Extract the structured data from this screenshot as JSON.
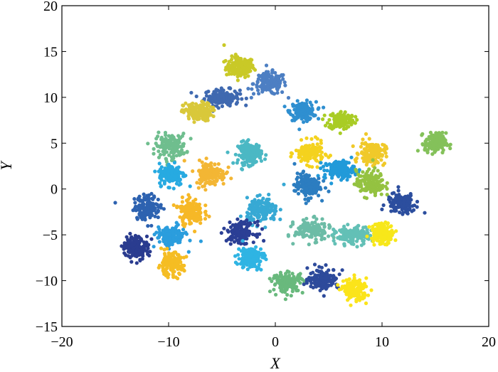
{
  "chart_data": {
    "type": "scatter",
    "xlabel": "X",
    "ylabel": "Y",
    "xlim": [
      -20,
      20
    ],
    "ylim": [
      -15,
      20
    ],
    "xticks": [
      -20,
      -10,
      0,
      10,
      20
    ],
    "yticks": [
      -15,
      -10,
      -5,
      0,
      5,
      10,
      15,
      20
    ],
    "xtick_labels": [
      "−20",
      "−10",
      "0",
      "10",
      "20"
    ],
    "ytick_labels": [
      "−15",
      "−10",
      "−5",
      "0",
      "5",
      "10",
      "15",
      "20"
    ],
    "grid": false,
    "legend": "none",
    "clusters": [
      {
        "center": [
          -3.3,
          13.3
        ],
        "spread": [
          1.2,
          1.0
        ],
        "color": "#c9c927"
      },
      {
        "center": [
          -5.0,
          10.0
        ],
        "spread": [
          1.5,
          0.8
        ],
        "color": "#3f69b0"
      },
      {
        "center": [
          -0.5,
          11.5
        ],
        "spread": [
          1.4,
          1.1
        ],
        "color": "#4d7fc3"
      },
      {
        "center": [
          2.6,
          8.5
        ],
        "spread": [
          1.1,
          0.9
        ],
        "color": "#2f8fd0"
      },
      {
        "center": [
          6.2,
          7.5
        ],
        "spread": [
          1.1,
          0.9
        ],
        "color": "#a9cc25"
      },
      {
        "center": [
          -7.3,
          8.4
        ],
        "spread": [
          1.2,
          0.9
        ],
        "color": "#d9c83a"
      },
      {
        "center": [
          -9.8,
          4.7
        ],
        "spread": [
          1.3,
          1.2
        ],
        "color": "#6fbe8e"
      },
      {
        "center": [
          -2.4,
          3.9
        ],
        "spread": [
          1.0,
          1.1
        ],
        "color": "#4bb8c4"
      },
      {
        "center": [
          3.2,
          3.9
        ],
        "spread": [
          1.2,
          1.1
        ],
        "color": "#f4d21e"
      },
      {
        "center": [
          9.1,
          3.9
        ],
        "spread": [
          1.1,
          1.1
        ],
        "color": "#f0c92a"
      },
      {
        "center": [
          15.0,
          5.0
        ],
        "spread": [
          0.9,
          1.0
        ],
        "color": "#84c15a"
      },
      {
        "center": [
          -9.7,
          1.6
        ],
        "spread": [
          1.1,
          1.1
        ],
        "color": "#27aae1"
      },
      {
        "center": [
          -6.1,
          1.7
        ],
        "spread": [
          1.3,
          1.2
        ],
        "color": "#f3b634"
      },
      {
        "center": [
          6.0,
          2.1
        ],
        "spread": [
          1.3,
          0.9
        ],
        "color": "#219ad9"
      },
      {
        "center": [
          3.0,
          0.4
        ],
        "spread": [
          1.1,
          1.2
        ],
        "color": "#2c7dc0"
      },
      {
        "center": [
          8.9,
          0.6
        ],
        "spread": [
          1.2,
          1.3
        ],
        "color": "#94c241"
      },
      {
        "center": [
          -12.0,
          -2.0
        ],
        "spread": [
          1.1,
          1.2
        ],
        "color": "#2d62b0"
      },
      {
        "center": [
          -7.9,
          -2.4
        ],
        "spread": [
          1.0,
          1.3
        ],
        "color": "#f6b827"
      },
      {
        "center": [
          -1.2,
          -2.4
        ],
        "spread": [
          1.3,
          1.2
        ],
        "color": "#37a9d4"
      },
      {
        "center": [
          11.8,
          -1.6
        ],
        "spread": [
          1.2,
          1.0
        ],
        "color": "#2c4e9e"
      },
      {
        "center": [
          -3.2,
          -4.7
        ],
        "spread": [
          1.2,
          1.0
        ],
        "color": "#2b3f95"
      },
      {
        "center": [
          -9.8,
          -5.2
        ],
        "spread": [
          1.2,
          1.0
        ],
        "color": "#2b9ddd"
      },
      {
        "center": [
          3.5,
          -4.5
        ],
        "spread": [
          1.5,
          1.0
        ],
        "color": "#6cbca6"
      },
      {
        "center": [
          7.2,
          -5.1
        ],
        "spread": [
          1.5,
          0.9
        ],
        "color": "#63c0b6"
      },
      {
        "center": [
          10.0,
          -4.8
        ],
        "spread": [
          1.0,
          1.0
        ],
        "color": "#f7e71a"
      },
      {
        "center": [
          -13.1,
          -6.3
        ],
        "spread": [
          1.1,
          1.1
        ],
        "color": "#2a3c8f"
      },
      {
        "center": [
          -2.3,
          -7.5
        ],
        "spread": [
          1.1,
          1.1
        ],
        "color": "#2fb4e3"
      },
      {
        "center": [
          -9.8,
          -8.2
        ],
        "spread": [
          1.1,
          1.1
        ],
        "color": "#f5bd23"
      },
      {
        "center": [
          1.2,
          -10.2
        ],
        "spread": [
          1.3,
          1.0
        ],
        "color": "#69b97d"
      },
      {
        "center": [
          4.5,
          -9.8
        ],
        "spread": [
          1.3,
          1.0
        ],
        "color": "#2d4a9b"
      },
      {
        "center": [
          7.5,
          -11.0
        ],
        "spread": [
          1.0,
          1.1
        ],
        "color": "#fbe41a"
      }
    ],
    "stray_points": [
      {
        "x": -15.0,
        "y": -1.5,
        "color": "#2d62b0"
      },
      {
        "x": -4.8,
        "y": 15.7,
        "color": "#c9c927"
      },
      {
        "x": 14.0,
        "y": -2.6,
        "color": "#2c4e9e"
      },
      {
        "x": 8.5,
        "y": 6.0,
        "color": "#f0c92a"
      },
      {
        "x": -6.2,
        "y": -3.0,
        "color": "#f3b634"
      },
      {
        "x": 0.8,
        "y": 0.5,
        "color": "#37a9d4"
      }
    ]
  }
}
